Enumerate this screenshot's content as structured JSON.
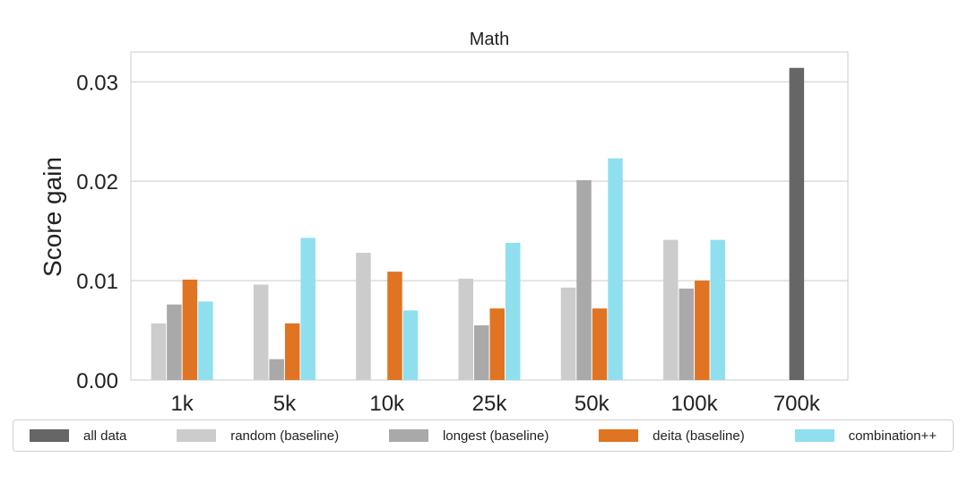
{
  "chart_data": {
    "type": "bar",
    "title": "Math",
    "xlabel": "",
    "ylabel": "Score gain",
    "ylim": [
      0,
      0.033
    ],
    "yticks": [
      "0.00",
      "0.01",
      "0.02",
      "0.03"
    ],
    "ytick_values": [
      0,
      0.01,
      0.02,
      0.03
    ],
    "grid": true,
    "legend_position": "bottom",
    "categories": [
      "1k",
      "5k",
      "10k",
      "25k",
      "50k",
      "100k",
      "700k"
    ],
    "series": [
      {
        "name": "all data",
        "color": "#666666",
        "values": [
          null,
          null,
          null,
          null,
          null,
          null,
          0.0314
        ]
      },
      {
        "name": "random (baseline)",
        "color": "#cccccc",
        "values": [
          0.0057,
          0.0096,
          0.0128,
          0.0102,
          0.0093,
          0.0141,
          null
        ]
      },
      {
        "name": "longest (baseline)",
        "color": "#a9a9a9",
        "values": [
          0.0076,
          0.0021,
          null,
          0.0055,
          0.0201,
          0.0092,
          null
        ]
      },
      {
        "name": "deita (baseline)",
        "color": "#e07422",
        "values": [
          0.0101,
          0.0057,
          0.0109,
          0.0072,
          0.0072,
          0.01,
          null
        ]
      },
      {
        "name": "combination++",
        "color": "#8fdfef",
        "values": [
          0.0079,
          0.0143,
          0.007,
          0.0138,
          0.0223,
          0.0141,
          null
        ]
      }
    ]
  }
}
